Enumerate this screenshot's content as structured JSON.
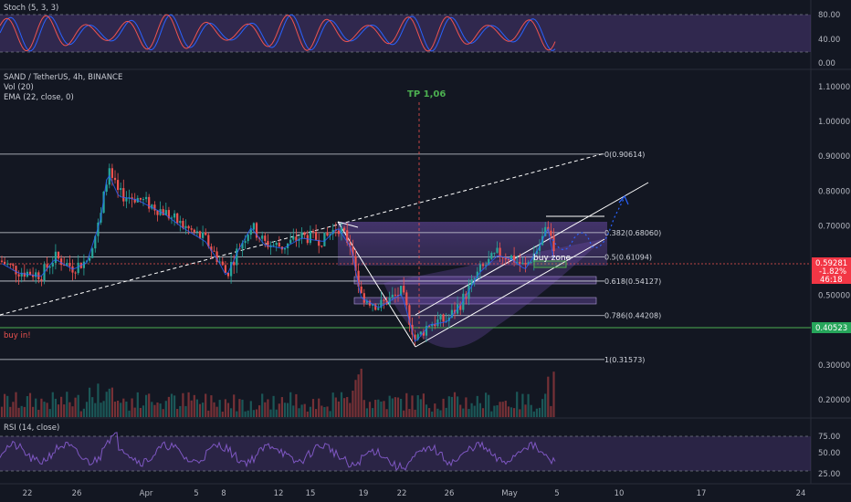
{
  "stoch_pane": {
    "label": "Stoch (5, 3, 3)",
    "ticks": [
      "80.00",
      "40.00",
      "0.00"
    ]
  },
  "main_pane": {
    "symbol": "SAND / TetherUS, 4h, BINANCE",
    "indicators": [
      "Vol (20)",
      "EMA (22, close, 0)"
    ],
    "price_ticks": [
      "1.10000",
      "1.00000",
      "0.90000",
      "0.80000",
      "0.70000",
      "0.60000",
      "0.50000",
      "0.40000",
      "0.30000",
      "0.20000"
    ],
    "tp_label": "TP 1,06",
    "buy_in_label": "buy in!",
    "buy_zone_label": "buy zone",
    "fib_levels": [
      {
        "label": "0(0.90614)",
        "price": 0.90614
      },
      {
        "label": "0.382(0.68060)",
        "price": 0.6806
      },
      {
        "label": "0.5(0.61094)",
        "price": 0.61094
      },
      {
        "label": "0.618(0.54127)",
        "price": 0.54127
      },
      {
        "label": "0.786(0.44208)",
        "price": 0.44208
      },
      {
        "label": "1(0.31573)",
        "price": 0.31573
      }
    ],
    "current_price": {
      "price": "0.59281",
      "change": "-1.82%",
      "countdown": "46:18",
      "color": "#f23645"
    },
    "buy_in_price": {
      "price": "0.40523",
      "color": "#26a65b"
    }
  },
  "rsi_pane": {
    "label": "RSI (14, close)",
    "ticks": [
      "75.00",
      "50.00",
      "25.00"
    ]
  },
  "time_axis": [
    "22",
    "26",
    "Apr",
    "5",
    "8",
    "12",
    "15",
    "19",
    "22",
    "26",
    "May",
    "5",
    "10",
    "17",
    "24"
  ],
  "colors": {
    "up": "#26a69a",
    "down": "#ef5350",
    "background": "#131722",
    "accent": "#4caf50"
  }
}
